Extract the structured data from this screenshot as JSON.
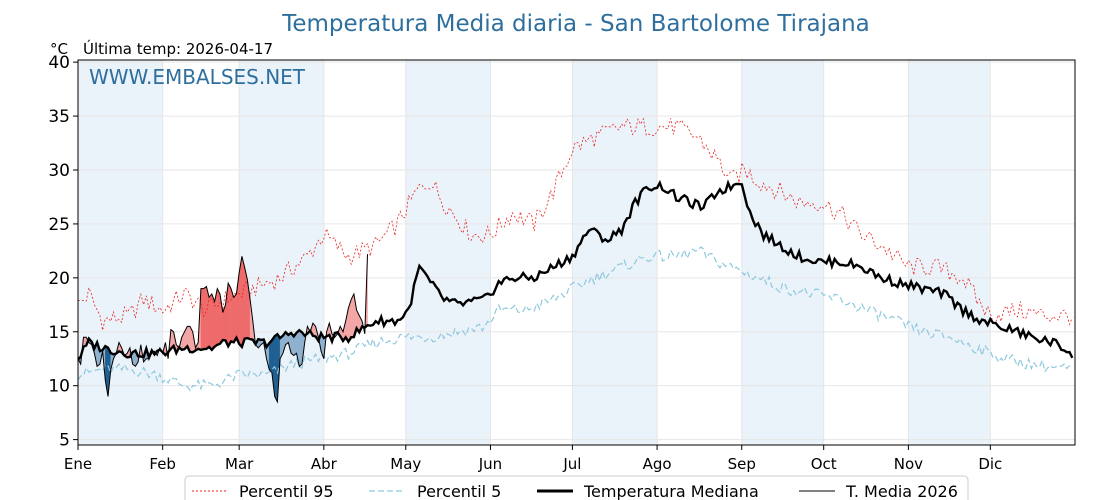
{
  "chart_data": {
    "type": "line",
    "title": "Temperatura Media diaria - San Bartolome Tirajana",
    "unit_label": "°C",
    "last_temp": "Última temp: 2026-04-17",
    "watermark": "WWW.EMBALSES.NET",
    "ylim": [
      4.5,
      40.2
    ],
    "yticks": [
      5,
      10,
      15,
      20,
      25,
      30,
      35,
      40
    ],
    "months": [
      "Ene",
      "Feb",
      "Mar",
      "Abr",
      "May",
      "Jun",
      "Jul",
      "Ago",
      "Sep",
      "Oct",
      "Nov",
      "Dic"
    ],
    "legend": [
      "Percentil 95",
      "Percentil 5",
      "Temperatura Mediana",
      "T. Media 2026"
    ],
    "colors": {
      "title": "#2e6f9e",
      "p95": "#e8231d",
      "p5": "#8ec9dd",
      "median": "#000000",
      "current": "#000000",
      "above": "#f4a6a6",
      "above_strong": "#ef6b6b",
      "below": "#8fb1cf",
      "below_strong": "#1f5f92",
      "band": "#eaf2fa",
      "grid": "#e6e6e6"
    },
    "p95_keypoints": [
      [
        1,
        17.5
      ],
      [
        5,
        18.5
      ],
      [
        10,
        16
      ],
      [
        20,
        16.5
      ],
      [
        25,
        18
      ],
      [
        32,
        17
      ],
      [
        40,
        18.5
      ],
      [
        48,
        17
      ],
      [
        55,
        18
      ],
      [
        65,
        19
      ],
      [
        75,
        20
      ],
      [
        85,
        22
      ],
      [
        91,
        24
      ],
      [
        100,
        22
      ],
      [
        110,
        23
      ],
      [
        118,
        25
      ],
      [
        125,
        28
      ],
      [
        130,
        29
      ],
      [
        135,
        27
      ],
      [
        145,
        24
      ],
      [
        152,
        24
      ],
      [
        160,
        26
      ],
      [
        168,
        25
      ],
      [
        175,
        28
      ],
      [
        182,
        32
      ],
      [
        190,
        33
      ],
      [
        200,
        34
      ],
      [
        210,
        34
      ],
      [
        220,
        34
      ],
      [
        228,
        33
      ],
      [
        235,
        31
      ],
      [
        240,
        29
      ],
      [
        245,
        30
      ],
      [
        250,
        29
      ],
      [
        258,
        28
      ],
      [
        265,
        27
      ],
      [
        273,
        27
      ],
      [
        280,
        26
      ],
      [
        288,
        24
      ],
      [
        295,
        23
      ],
      [
        305,
        21
      ],
      [
        315,
        21
      ],
      [
        325,
        20
      ],
      [
        330,
        18
      ],
      [
        335,
        16.5
      ],
      [
        345,
        17
      ],
      [
        355,
        16.5
      ],
      [
        365,
        16.5
      ]
    ],
    "p5_keypoints": [
      [
        1,
        11
      ],
      [
        10,
        11.5
      ],
      [
        20,
        11.5
      ],
      [
        30,
        11
      ],
      [
        40,
        10
      ],
      [
        50,
        10
      ],
      [
        60,
        11
      ],
      [
        70,
        11
      ],
      [
        80,
        12
      ],
      [
        90,
        12.5
      ],
      [
        100,
        13
      ],
      [
        110,
        14
      ],
      [
        120,
        14.5
      ],
      [
        130,
        14.5
      ],
      [
        140,
        15
      ],
      [
        150,
        15.5
      ],
      [
        155,
        17
      ],
      [
        165,
        17
      ],
      [
        175,
        18
      ],
      [
        182,
        19
      ],
      [
        190,
        20
      ],
      [
        200,
        21
      ],
      [
        210,
        22
      ],
      [
        220,
        22
      ],
      [
        228,
        22.5
      ],
      [
        235,
        21.5
      ],
      [
        240,
        21
      ],
      [
        250,
        20
      ],
      [
        260,
        19
      ],
      [
        270,
        18.5
      ],
      [
        280,
        18
      ],
      [
        290,
        17
      ],
      [
        300,
        16
      ],
      [
        310,
        15
      ],
      [
        320,
        14.5
      ],
      [
        330,
        13.5
      ],
      [
        340,
        12.5
      ],
      [
        350,
        12
      ],
      [
        365,
        11.5
      ]
    ],
    "median_keypoints": [
      [
        1,
        12.5
      ],
      [
        5,
        14
      ],
      [
        10,
        13.5
      ],
      [
        20,
        13
      ],
      [
        30,
        13
      ],
      [
        40,
        13.5
      ],
      [
        50,
        13.5
      ],
      [
        55,
        14
      ],
      [
        60,
        14
      ],
      [
        70,
        14
      ],
      [
        80,
        15
      ],
      [
        90,
        14.5
      ],
      [
        100,
        14.5
      ],
      [
        110,
        16
      ],
      [
        118,
        16
      ],
      [
        122,
        17
      ],
      [
        126,
        21
      ],
      [
        130,
        19.5
      ],
      [
        135,
        18
      ],
      [
        140,
        17.5
      ],
      [
        150,
        18
      ],
      [
        155,
        19.5
      ],
      [
        160,
        20
      ],
      [
        168,
        20
      ],
      [
        175,
        21
      ],
      [
        182,
        22
      ],
      [
        188,
        24.5
      ],
      [
        195,
        23.5
      ],
      [
        200,
        24.5
      ],
      [
        205,
        27
      ],
      [
        210,
        28.5
      ],
      [
        215,
        28.5
      ],
      [
        220,
        27.5
      ],
      [
        225,
        27
      ],
      [
        230,
        26.5
      ],
      [
        235,
        28
      ],
      [
        240,
        28.5
      ],
      [
        244,
        29
      ],
      [
        247,
        26
      ],
      [
        252,
        24
      ],
      [
        258,
        23
      ],
      [
        265,
        22
      ],
      [
        272,
        21.5
      ],
      [
        280,
        21.5
      ],
      [
        288,
        21
      ],
      [
        295,
        20
      ],
      [
        302,
        19.5
      ],
      [
        310,
        19
      ],
      [
        318,
        18.5
      ],
      [
        325,
        17
      ],
      [
        332,
        16
      ],
      [
        338,
        15.5
      ],
      [
        345,
        15
      ],
      [
        350,
        14.5
      ],
      [
        358,
        14
      ],
      [
        365,
        13
      ]
    ],
    "current_2026": [
      12.5,
      12,
      14.5,
      14.5,
      14,
      13.8,
      13,
      11.8,
      12,
      13.2,
      10.5,
      9,
      11.5,
      12.5,
      13,
      14,
      13.5,
      12.8,
      13,
      13.5,
      12,
      11.8,
      12.2,
      13.8,
      12.2,
      12.5,
      12.5,
      13,
      13.2,
      12.8,
      13.5,
      13,
      14,
      12.5,
      15.2,
      15,
      13.8,
      13.5,
      14.5,
      15,
      15.5,
      15.5,
      15,
      13.5,
      14,
      19,
      19,
      19.2,
      18.2,
      18.5,
      17.8,
      19,
      18.5,
      16.8,
      17.5,
      19.5,
      19,
      18.2,
      18.5,
      20.5,
      22,
      21,
      19.8,
      18,
      16,
      13.8,
      13.5,
      13.8,
      14,
      12.5,
      11.5,
      11.2,
      9,
      8.5,
      12.5,
      13,
      13.8,
      14,
      13,
      12.8,
      13,
      11.8,
      12,
      14,
      15.5,
      15,
      15.8,
      15.5,
      14.5,
      13.2,
      12.5,
      15,
      15.8,
      14.8,
      14.5,
      14.8,
      15.5,
      15,
      16,
      17.2,
      18,
      18.5,
      17,
      16.5,
      16,
      14.8,
      22.2
    ]
  }
}
